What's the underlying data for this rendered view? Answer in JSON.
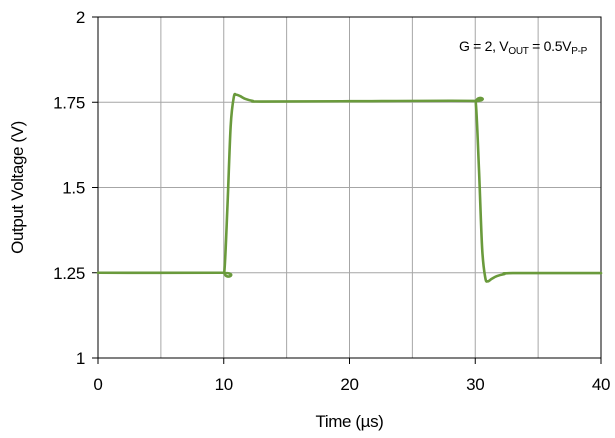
{
  "chart_data": {
    "type": "line",
    "xlabel": "Time (µs)",
    "ylabel": "Output Voltage (V)",
    "xlim": [
      0,
      40
    ],
    "ylim": [
      1,
      2
    ],
    "x_ticks": [
      0,
      10,
      20,
      30,
      40
    ],
    "x_tick_labels": [
      "0",
      "10",
      "20",
      "30",
      "40"
    ],
    "y_ticks": [
      1,
      1.25,
      1.5,
      1.75,
      2
    ],
    "y_tick_labels": [
      "1",
      "1.25",
      "1.5",
      "1.75",
      "2"
    ],
    "grid": true,
    "x_grid_step": 5,
    "annotation": {
      "prefix": "G = 2, V",
      "sub1": "OUT",
      "middle": " = 0.5V",
      "sub2": "P-P",
      "placement": "top-right"
    },
    "series": [
      {
        "color": "#6a9a3c",
        "points": [
          [
            0,
            1.25
          ],
          [
            9.8,
            1.25
          ],
          [
            10.05,
            1.255
          ],
          [
            10.3,
            1.45
          ],
          [
            10.55,
            1.68
          ],
          [
            10.8,
            1.765
          ],
          [
            11.0,
            1.772
          ],
          [
            11.3,
            1.768
          ],
          [
            11.7,
            1.76
          ],
          [
            12.3,
            1.754
          ],
          [
            13.0,
            1.752
          ],
          [
            20,
            1.753
          ],
          [
            29.8,
            1.754
          ],
          [
            30.05,
            1.745
          ],
          [
            30.3,
            1.55
          ],
          [
            30.55,
            1.32
          ],
          [
            30.8,
            1.235
          ],
          [
            31.0,
            1.225
          ],
          [
            31.3,
            1.232
          ],
          [
            31.7,
            1.24
          ],
          [
            32.3,
            1.246
          ],
          [
            33.0,
            1.249
          ],
          [
            40,
            1.249
          ]
        ]
      }
    ]
  }
}
